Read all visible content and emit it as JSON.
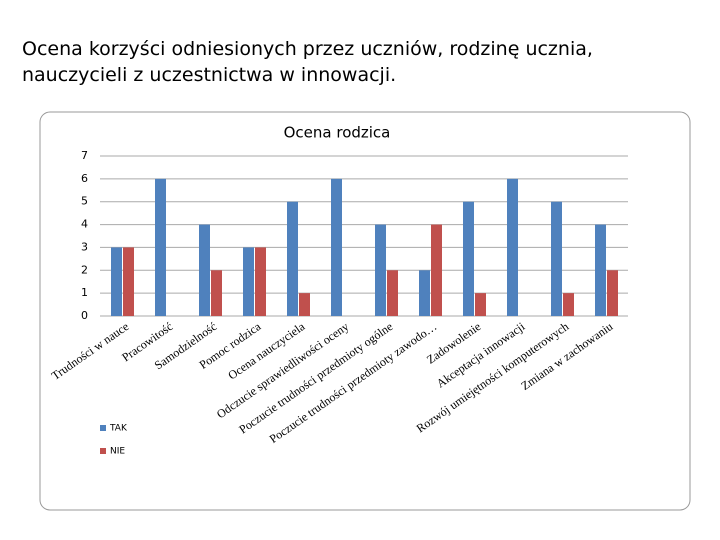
{
  "heading": "Ocena korzyści odniesionych przez uczniów, rodzinę ucznia, nauczycieli z uczestnictwa w innowacji.",
  "chart_data": {
    "type": "bar",
    "title": "Ocena rodzica",
    "categories": [
      "Trudności w nauce",
      "Pracowitość",
      "Samodzielność",
      "Pomoc rodzica",
      "Ocena nauczyciela",
      "Odczucie sprawiedliwości oceny",
      "Poczucie trudności przedmioty ogólne",
      "Poczucie trudności przedmioty zawodo…",
      "Zadowolenie",
      "Akceptacja innowacji",
      "Rozwój umiejętności komputerowych",
      "Zmiana w zachowaniu"
    ],
    "series": [
      {
        "name": "TAK",
        "color": "#4f81bd",
        "values": [
          3,
          6,
          4,
          3,
          5,
          6,
          4,
          2,
          5,
          6,
          5,
          4
        ]
      },
      {
        "name": "NIE",
        "color": "#c0504d",
        "values": [
          3,
          0,
          2,
          3,
          1,
          0,
          2,
          4,
          1,
          0,
          1,
          2
        ]
      }
    ],
    "ylim": [
      0,
      7
    ],
    "yticks": [
      0,
      1,
      2,
      3,
      4,
      5,
      6,
      7
    ],
    "grid": true,
    "legend": "bottom-left"
  }
}
